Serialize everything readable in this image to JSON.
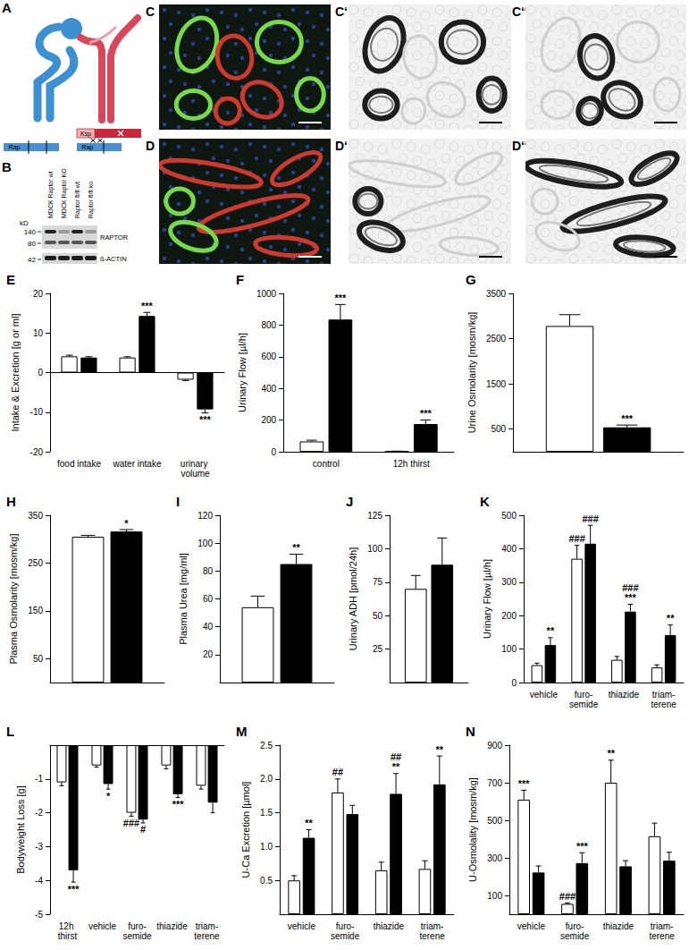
{
  "panels": [
    {
      "title": "A",
      "labels": [
        "Rap",
        "Ksp",
        "Rap"
      ]
    },
    {
      "title": "B",
      "lanes": [
        "MDCK Raptor wt",
        "MDCK Raptor KO",
        "Raptor fl/fl wt",
        "Raptor fl/fl ko"
      ],
      "unit": "kD",
      "markers": [
        140,
        80,
        42
      ],
      "bands": [
        "RAPTOR",
        "ß-ACTIN"
      ]
    },
    {
      "titles": [
        "C",
        "C‘",
        "C‘‘"
      ]
    },
    {
      "titles": [
        "D",
        "D‘",
        "D‘‘"
      ]
    }
  ],
  "chart_data": [
    {
      "type": "bar",
      "title": "E",
      "ylabel": "Intake & Excretion [g or ml]",
      "categories": [
        "food intake",
        "water intake",
        "urinary volume"
      ],
      "ylim": [
        -20,
        20
      ],
      "yticks": [
        -20,
        -10,
        0,
        10,
        20
      ],
      "grid": false,
      "series": [
        {
          "color": "#ffffff",
          "values": [
            4.1,
            3.8,
            -1.8
          ],
          "errors": [
            0.3,
            0.2,
            0.2
          ],
          "annotations": [
            null,
            null,
            null
          ]
        },
        {
          "color": "#000000",
          "values": [
            3.8,
            14.3,
            -9.3
          ],
          "errors": [
            0.2,
            0.9,
            0.9
          ],
          "annotations": [
            null,
            [
              "***"
            ],
            [
              "***"
            ]
          ]
        }
      ]
    },
    {
      "type": "bar",
      "title": "F",
      "ylabel": "Urinary Flow [µl/h]",
      "categories": [
        "control",
        "12h thirst"
      ],
      "ylim": [
        0,
        1000
      ],
      "yticks": [
        0,
        200,
        400,
        600,
        800,
        1000
      ],
      "grid": false,
      "series": [
        {
          "color": "#ffffff",
          "values": [
            65,
            3
          ],
          "errors": [
            8,
            1
          ],
          "annotations": [
            null,
            null
          ]
        },
        {
          "color": "#000000",
          "values": [
            835,
            175
          ],
          "errors": [
            95,
            25
          ],
          "annotations": [
            [
              "***"
            ],
            [
              "***"
            ]
          ]
        }
      ]
    },
    {
      "type": "bar",
      "title": "G",
      "ylabel": "Urine Osmolarity [mosm/kg]",
      "categories": [
        null
      ],
      "ylim": [
        0,
        3500
      ],
      "yticks": [
        500,
        1500,
        2500,
        3500
      ],
      "grid": false,
      "series": [
        {
          "color": "#ffffff",
          "values": [
            2780
          ],
          "errors": [
            250
          ],
          "annotations": [
            null
          ]
        },
        {
          "color": "#000000",
          "values": [
            540
          ],
          "errors": [
            50
          ],
          "annotations": [
            [
              "***"
            ]
          ]
        }
      ]
    },
    {
      "type": "bar",
      "title": "H",
      "ylabel": "Plasma Osmolarity [mosm/kg]",
      "categories": [
        null
      ],
      "ylim": [
        0,
        350
      ],
      "yticks": [
        50,
        150,
        250,
        350
      ],
      "grid": false,
      "series": [
        {
          "color": "#ffffff",
          "values": [
            305
          ],
          "errors": [
            3
          ],
          "annotations": [
            null
          ]
        },
        {
          "color": "#000000",
          "values": [
            316
          ],
          "errors": [
            4
          ],
          "annotations": [
            [
              "*"
            ]
          ]
        }
      ]
    },
    {
      "type": "bar",
      "title": "I",
      "ylabel": "Plasma Urea [mg/ml]",
      "categories": [
        null
      ],
      "ylim": [
        0,
        120
      ],
      "yticks": [
        20,
        40,
        60,
        80,
        100,
        120
      ],
      "grid": false,
      "series": [
        {
          "color": "#ffffff",
          "values": [
            54
          ],
          "errors": [
            8
          ],
          "annotations": [
            null
          ]
        },
        {
          "color": "#000000",
          "values": [
            85
          ],
          "errors": [
            7
          ],
          "annotations": [
            [
              "**"
            ]
          ]
        }
      ]
    },
    {
      "type": "bar",
      "title": "J",
      "ylabel": "Urinary ADH [pmol/24h]",
      "categories": [
        null
      ],
      "ylim": [
        0,
        125
      ],
      "yticks": [
        25,
        50,
        75,
        100,
        125
      ],
      "grid": false,
      "series": [
        {
          "color": "#ffffff",
          "values": [
            70
          ],
          "errors": [
            10
          ],
          "annotations": [
            null
          ]
        },
        {
          "color": "#000000",
          "values": [
            88
          ],
          "errors": [
            20
          ],
          "annotations": [
            null
          ]
        }
      ]
    },
    {
      "type": "bar",
      "title": "K",
      "ylabel": "Urinary Flow [µl/h]",
      "categories": [
        "vehicle",
        "furo-\nsemide",
        "thiazide",
        "triam-\nterene"
      ],
      "ylim": [
        0,
        500
      ],
      "yticks": [
        0,
        100,
        200,
        300,
        400,
        500
      ],
      "grid": false,
      "series": [
        {
          "color": "#ffffff",
          "values": [
            52,
            370,
            68,
            45
          ],
          "errors": [
            6,
            40,
            10,
            8
          ],
          "annotations": [
            null,
            [
              "###"
            ],
            null,
            null
          ]
        },
        {
          "color": "#000000",
          "values": [
            112,
            415,
            212,
            142
          ],
          "errors": [
            22,
            55,
            22,
            30
          ],
          "annotations": [
            [
              "**"
            ],
            [
              "###"
            ],
            [
              "###",
              "***"
            ],
            [
              "**"
            ]
          ]
        }
      ]
    },
    {
      "type": "bar",
      "title": "L",
      "ylabel": "Bodyweight Loss [g]",
      "categories": [
        "12h thirst",
        "vehicle",
        "furo-\nsemide",
        "thiazide",
        "triam-\nterene"
      ],
      "ylim": [
        -5,
        0
      ],
      "yticks": [
        -5,
        -4,
        -3,
        -2,
        -1
      ],
      "grid": false,
      "series": [
        {
          "color": "#ffffff",
          "values": [
            -1.1,
            -0.6,
            -2.0,
            -0.6,
            -1.2
          ],
          "errors": [
            0.1,
            0.05,
            0.1,
            0.1,
            0.1
          ],
          "annotations": [
            null,
            null,
            [
              "###"
            ],
            null,
            null
          ]
        },
        {
          "color": "#000000",
          "values": [
            -3.7,
            -1.15,
            -2.2,
            -1.45,
            -1.7
          ],
          "errors": [
            0.35,
            0.15,
            0.1,
            0.1,
            0.3
          ],
          "annotations": [
            [
              "***"
            ],
            [
              "*"
            ],
            [
              "#"
            ],
            [
              "***"
            ],
            null
          ]
        }
      ]
    },
    {
      "type": "bar",
      "title": "M",
      "ylabel": "U-Ca Excretion [µmol]",
      "categories": [
        "vehicle",
        "furo-\nsemide",
        "thiazide",
        "triam-\nterene"
      ],
      "ylim": [
        0,
        2.5
      ],
      "yticks": [
        0.5,
        {
          "value": 1,
          "label": "1.0"
        },
        1.5,
        {
          "value": 2,
          "label": "2.0"
        },
        2.5
      ],
      "grid": false,
      "series": [
        {
          "color": "#ffffff",
          "values": [
            0.5,
            1.8,
            0.65,
            0.67
          ],
          "errors": [
            0.07,
            0.2,
            0.12,
            0.12
          ],
          "annotations": [
            null,
            [
              "##"
            ],
            null,
            null
          ]
        },
        {
          "color": "#000000",
          "values": [
            1.13,
            1.48,
            1.78,
            1.92
          ],
          "errors": [
            0.12,
            0.13,
            0.3,
            0.42
          ],
          "annotations": [
            [
              "**"
            ],
            null,
            [
              "##",
              "**"
            ],
            [
              "**"
            ]
          ]
        }
      ]
    },
    {
      "type": "bar",
      "title": "N",
      "ylabel": "U-Osmolality [mosm/kg]",
      "categories": [
        "vehicle",
        "furo-\nsemide",
        "thiazide",
        "triam-\nterene"
      ],
      "ylim": [
        0,
        900
      ],
      "yticks": [
        100,
        300,
        500,
        700,
        900
      ],
      "grid": false,
      "series": [
        {
          "color": "#ffffff",
          "values": [
            610,
            55,
            700,
            415
          ],
          "errors": [
            50,
            5,
            120,
            70
          ],
          "annotations": [
            [
              "***"
            ],
            [
              "###"
            ],
            [
              "**"
            ],
            null
          ]
        },
        {
          "color": "#000000",
          "values": [
            222,
            272,
            255,
            285
          ],
          "errors": [
            35,
            55,
            30,
            45
          ],
          "annotations": [
            null,
            [
              "***"
            ],
            null,
            null
          ]
        }
      ]
    }
  ]
}
